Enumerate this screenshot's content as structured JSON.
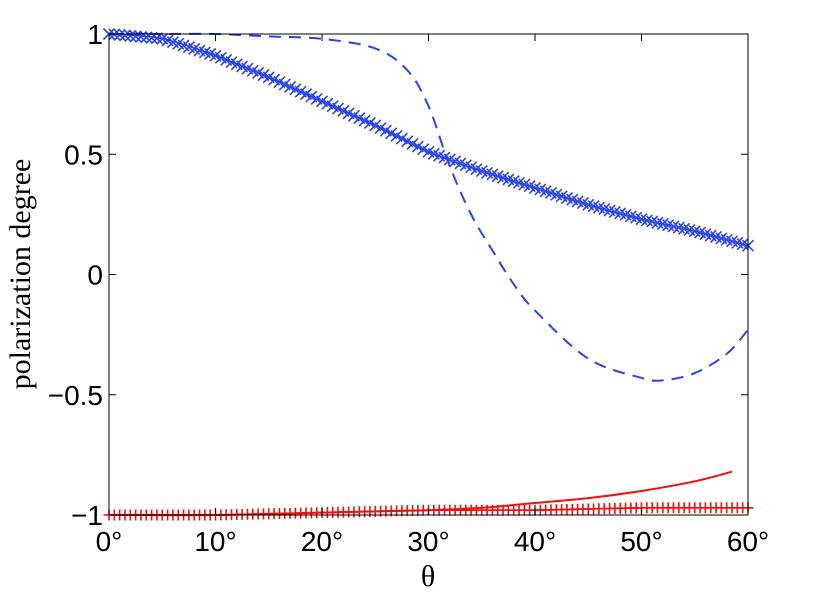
{
  "chart_data": {
    "type": "line",
    "xlabel": "θ",
    "ylabel": "polarization degree",
    "xlim": [
      0,
      60
    ],
    "ylim": [
      -1,
      1
    ],
    "x_ticks": [
      0,
      10,
      20,
      30,
      40,
      50,
      60
    ],
    "x_tick_labels": [
      "0°",
      "10°",
      "20°",
      "30°",
      "40°",
      "50°",
      "60°"
    ],
    "y_ticks": [
      -1,
      -0.5,
      0,
      0.5,
      1
    ],
    "y_tick_labels": [
      "−1",
      "−0.5",
      "0",
      "0.5",
      "1"
    ],
    "grid": false,
    "legend": "none",
    "series": [
      {
        "style": "x-markers",
        "color": "#2b44e8",
        "x": [
          0,
          5,
          10,
          15,
          20,
          25,
          30,
          35,
          40,
          45,
          50,
          55,
          60
        ],
        "y": [
          1.0,
          0.98,
          0.91,
          0.82,
          0.72,
          0.62,
          0.51,
          0.43,
          0.36,
          0.29,
          0.23,
          0.18,
          0.12
        ]
      },
      {
        "style": "dashed",
        "color": "#2b44e8",
        "x": [
          0,
          5,
          10,
          15,
          20,
          25,
          28,
          30,
          32,
          34,
          36,
          38,
          40,
          45,
          50,
          52,
          55,
          58,
          60
        ],
        "y": [
          1.0,
          1.0,
          1.0,
          0.99,
          0.98,
          0.94,
          0.85,
          0.7,
          0.45,
          0.25,
          0.1,
          -0.04,
          -0.15,
          -0.35,
          -0.43,
          -0.44,
          -0.41,
          -0.33,
          -0.23
        ]
      },
      {
        "style": "solid",
        "color": "#ee1111",
        "x": [
          0,
          10,
          20,
          30,
          35,
          40,
          45,
          50,
          55,
          58.5
        ],
        "y": [
          -1.0,
          -1.0,
          -0.99,
          -0.98,
          -0.97,
          -0.95,
          -0.93,
          -0.9,
          -0.86,
          -0.82
        ]
      },
      {
        "style": "plus-markers",
        "color": "#ee1111",
        "x": [
          0,
          10,
          20,
          30,
          40,
          50,
          60
        ],
        "y": [
          -1.0,
          -1.0,
          -0.99,
          -0.98,
          -0.98,
          -0.97,
          -0.97
        ]
      }
    ]
  }
}
